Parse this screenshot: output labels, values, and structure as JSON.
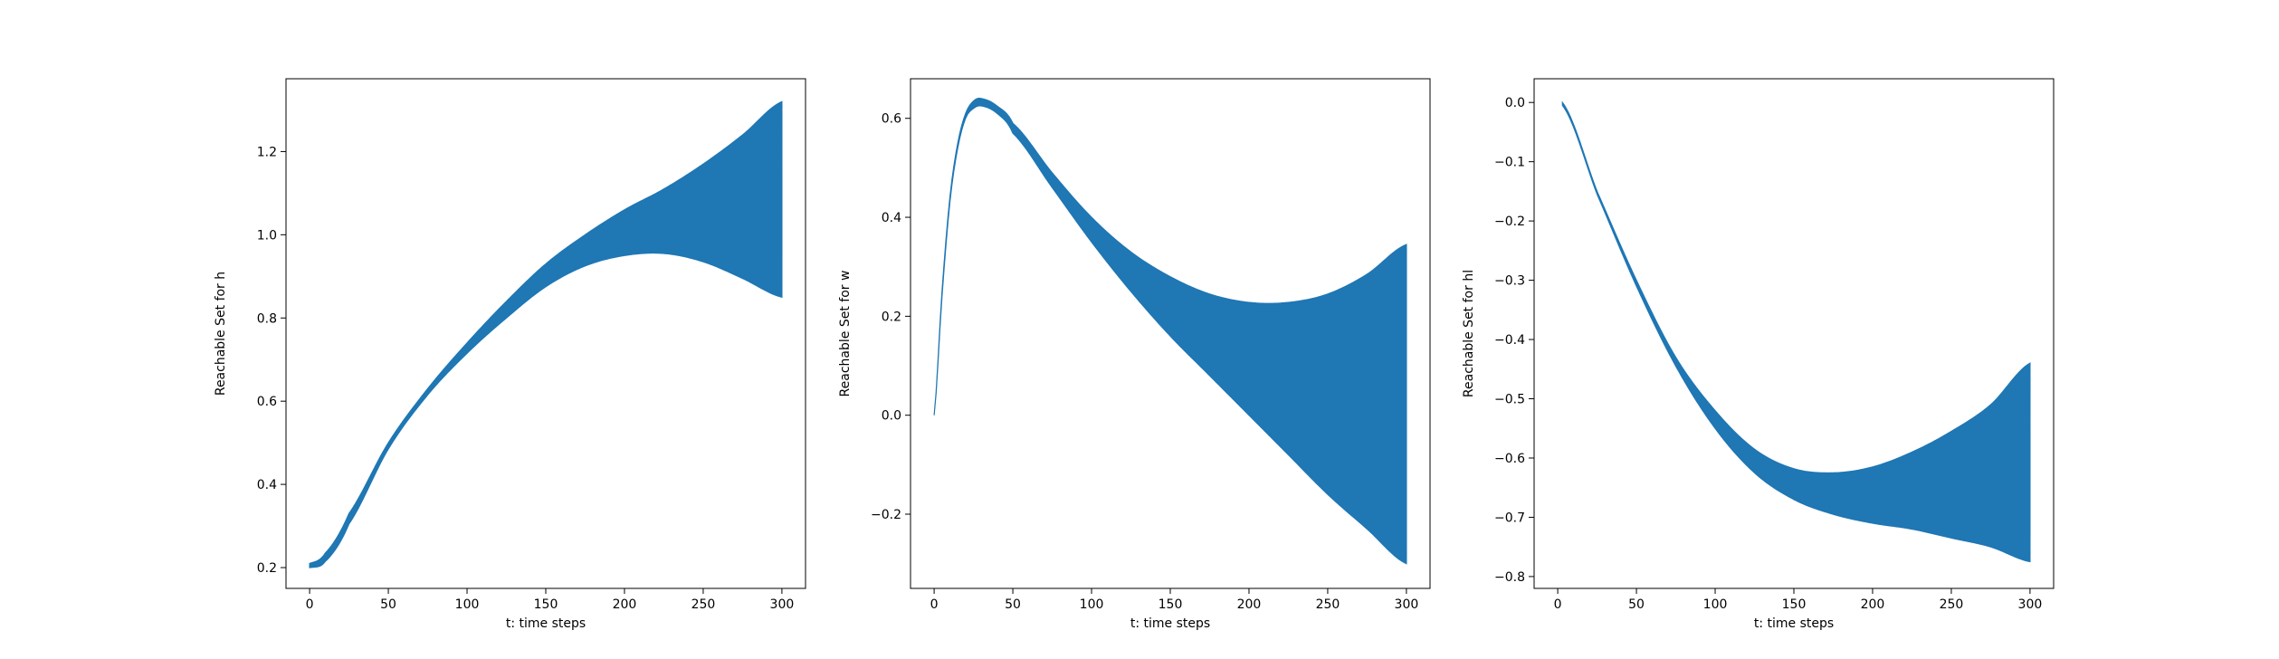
{
  "figure": {
    "background": "#ffffff"
  },
  "chart_data": [
    {
      "type": "area",
      "xlabel": "t: time steps",
      "ylabel": "Reachable Set for h",
      "xlim": [
        -15,
        315
      ],
      "ylim": [
        0.15,
        1.375
      ],
      "xticks": [
        0,
        50,
        100,
        150,
        200,
        250,
        300
      ],
      "xtick_labels": [
        "0",
        "50",
        "100",
        "150",
        "200",
        "250",
        "300"
      ],
      "yticks": [
        0.2,
        0.4,
        0.6,
        0.8,
        1.0,
        1.2
      ],
      "ytick_labels": [
        "0.2",
        "0.4",
        "0.6",
        "0.8",
        "1.0",
        "1.2"
      ],
      "grid": false,
      "fill_color": "#1f77b4",
      "x": [
        0,
        10,
        25,
        50,
        75,
        100,
        125,
        150,
        175,
        200,
        225,
        250,
        275,
        300
      ],
      "upper": [
        0.21,
        0.235,
        0.33,
        0.5,
        0.63,
        0.74,
        0.84,
        0.93,
        1.0,
        1.06,
        1.11,
        1.17,
        1.24,
        1.32
      ],
      "lower": [
        0.2,
        0.215,
        0.305,
        0.485,
        0.615,
        0.715,
        0.8,
        0.875,
        0.925,
        0.95,
        0.955,
        0.935,
        0.895,
        0.85
      ]
    },
    {
      "type": "area",
      "xlabel": "t: time steps",
      "ylabel": "Reachable Set for w",
      "xlim": [
        -15,
        315
      ],
      "ylim": [
        -0.35,
        0.68
      ],
      "xticks": [
        0,
        50,
        100,
        150,
        200,
        250,
        300
      ],
      "xtick_labels": [
        "0",
        "50",
        "100",
        "150",
        "200",
        "250",
        "300"
      ],
      "yticks": [
        -0.2,
        0.0,
        0.2,
        0.4,
        0.6
      ],
      "ytick_labels": [
        "−0.2",
        "0.0",
        "0.2",
        "0.4",
        "0.6"
      ],
      "grid": false,
      "fill_color": "#1f77b4",
      "x": [
        0,
        5,
        10,
        15,
        20,
        25,
        30,
        40,
        50,
        75,
        100,
        125,
        150,
        175,
        200,
        225,
        250,
        275,
        300
      ],
      "upper": [
        0.0,
        0.25,
        0.44,
        0.55,
        0.61,
        0.635,
        0.64,
        0.625,
        0.59,
        0.49,
        0.4,
        0.33,
        0.28,
        0.245,
        0.228,
        0.228,
        0.245,
        0.285,
        0.345
      ],
      "lower": [
        0.0,
        0.24,
        0.43,
        0.54,
        0.6,
        0.62,
        0.625,
        0.61,
        0.57,
        0.46,
        0.35,
        0.25,
        0.16,
        0.08,
        0.0,
        -0.08,
        -0.16,
        -0.23,
        -0.3
      ]
    },
    {
      "type": "area",
      "xlabel": "t: time steps",
      "ylabel": "Reachable Set for hl",
      "xlim": [
        -15,
        315
      ],
      "ylim": [
        -0.82,
        0.04
      ],
      "xticks": [
        0,
        50,
        100,
        150,
        200,
        250,
        300
      ],
      "xtick_labels": [
        "0",
        "50",
        "100",
        "150",
        "200",
        "250",
        "300"
      ],
      "yticks": [
        0.0,
        -0.1,
        -0.2,
        -0.3,
        -0.4,
        -0.5,
        -0.6,
        -0.7,
        -0.8
      ],
      "ytick_labels": [
        "0.0",
        "−0.1",
        "−0.2",
        "−0.3",
        "−0.4",
        "−0.5",
        "−0.6",
        "−0.7",
        "−0.8"
      ],
      "grid": false,
      "fill_color": "#1f77b4",
      "x": [
        3,
        25,
        50,
        75,
        100,
        125,
        150,
        175,
        200,
        225,
        250,
        275,
        300
      ],
      "upper": [
        0.0,
        -0.15,
        -0.3,
        -0.43,
        -0.52,
        -0.585,
        -0.618,
        -0.625,
        -0.615,
        -0.59,
        -0.555,
        -0.51,
        -0.44
      ],
      "lower": [
        -0.005,
        -0.155,
        -0.31,
        -0.445,
        -0.55,
        -0.625,
        -0.67,
        -0.695,
        -0.71,
        -0.72,
        -0.735,
        -0.75,
        -0.775
      ]
    }
  ]
}
